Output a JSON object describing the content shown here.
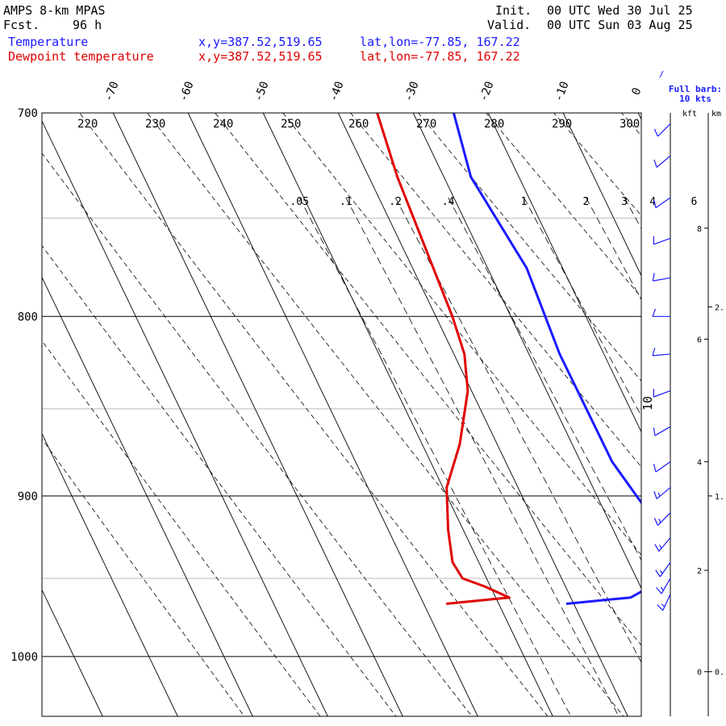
{
  "header": {
    "model": "AMPS 8-km MPAS",
    "fcst_label": "Fcst.",
    "fcst_value": "96 h",
    "init_label": "Init.",
    "init_value": "00 UTC Wed 30 Jul 25",
    "valid_label": "Valid.",
    "valid_value": "00 UTC Sun 03 Aug 25"
  },
  "legend": {
    "temperature": {
      "label": "Temperature",
      "xy": "x,y=387.52,519.65",
      "latlon": "lat,lon=-77.85, 167.22",
      "color": "#1a1aff"
    },
    "dewpoint": {
      "label": "Dewpoint temperature",
      "xy": "x,y=387.52,519.65",
      "latlon": "lat,lon=-77.85, 167.22",
      "color": "#e00000"
    }
  },
  "barb_key": {
    "line1": "Full barb:",
    "line2": "10 kts"
  },
  "height_axis": {
    "kft_label": "kft",
    "km_label": "km",
    "kft_ticks": [
      {
        "label": "0",
        "p": 1010
      },
      {
        "label": "2",
        "p": 945
      },
      {
        "label": "4",
        "p": 880
      },
      {
        "label": "6",
        "p": 812
      },
      {
        "label": "8",
        "p": 755
      }
    ],
    "km_ticks": [
      {
        "label": "0.",
        "p": 1010
      },
      {
        "label": "1.",
        "p": 900
      },
      {
        "label": "2.",
        "p": 795
      }
    ]
  },
  "barb_axis_label": "10",
  "chart_data": {
    "type": "line",
    "subtype": "skew-T log-p sounding",
    "y_axis": {
      "quantity": "pressure (hPa)",
      "scale": "log",
      "range": [
        1040,
        700
      ],
      "ticks": [
        700,
        800,
        900,
        1000
      ]
    },
    "temperature_ticks_top": [
      -70,
      -60,
      -50,
      -40,
      -30,
      -20,
      -10,
      0
    ],
    "dry_adiabat_labels": [
      220,
      230,
      240,
      250,
      260,
      270,
      280,
      290,
      300
    ],
    "mixing_ratio_labels": [
      ".05",
      ".1",
      ".2",
      ".4",
      "1",
      "2",
      "3",
      "4",
      "6"
    ],
    "grid": true,
    "series": [
      {
        "name": "Temperature",
        "color": "#1a1aff",
        "points": [
          {
            "p": 700,
            "t": -24.6
          },
          {
            "p": 730,
            "t": -26.4
          },
          {
            "p": 775,
            "t": -24.8
          },
          {
            "p": 820,
            "t": -25.9
          },
          {
            "p": 880,
            "t": -25.8
          },
          {
            "p": 910,
            "t": -24.2
          },
          {
            "p": 930,
            "t": -23.4
          },
          {
            "p": 945,
            "t": -25.4
          },
          {
            "p": 955,
            "t": -28.6
          },
          {
            "p": 962,
            "t": -32.0
          },
          {
            "p": 966,
            "t": -41.0
          }
        ]
      },
      {
        "name": "Dewpoint temperature",
        "color": "#e00000",
        "points": [
          {
            "p": 700,
            "t": -34.8
          },
          {
            "p": 730,
            "t": -36.2
          },
          {
            "p": 800,
            "t": -37.8
          },
          {
            "p": 820,
            "t": -38.6
          },
          {
            "p": 840,
            "t": -40.5
          },
          {
            "p": 870,
            "t": -45.0
          },
          {
            "p": 895,
            "t": -49.5
          },
          {
            "p": 920,
            "t": -52.0
          },
          {
            "p": 940,
            "t": -53.5
          },
          {
            "p": 950,
            "t": -53.2
          },
          {
            "p": 955,
            "t": -50.8
          },
          {
            "p": 962,
            "t": -48.2
          },
          {
            "p": 966,
            "t": -57.0
          }
        ]
      }
    ],
    "wind_barbs": [
      {
        "p": 705,
        "dir": 45,
        "kts": 10
      },
      {
        "p": 720,
        "dir": 50,
        "kts": 10
      },
      {
        "p": 740,
        "dir": 55,
        "kts": 10
      },
      {
        "p": 760,
        "dir": 70,
        "kts": 10
      },
      {
        "p": 780,
        "dir": 80,
        "kts": 10
      },
      {
        "p": 800,
        "dir": 90,
        "kts": 10
      },
      {
        "p": 820,
        "dir": 85,
        "kts": 10
      },
      {
        "p": 840,
        "dir": 70,
        "kts": 10
      },
      {
        "p": 860,
        "dir": 60,
        "kts": 10
      },
      {
        "p": 880,
        "dir": 55,
        "kts": 10
      },
      {
        "p": 895,
        "dir": 50,
        "kts": 15
      },
      {
        "p": 910,
        "dir": 45,
        "kts": 15
      },
      {
        "p": 925,
        "dir": 40,
        "kts": 15
      },
      {
        "p": 940,
        "dir": 35,
        "kts": 15
      },
      {
        "p": 950,
        "dir": 30,
        "kts": 15
      },
      {
        "p": 960,
        "dir": 25,
        "kts": 15
      }
    ]
  }
}
